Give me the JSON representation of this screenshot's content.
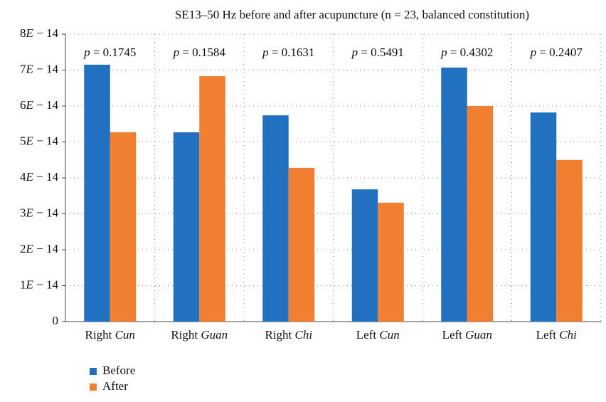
{
  "chart_data": {
    "type": "bar",
    "title": "SE13–50 Hz before and after acupuncture (n = 23, balanced constitution)",
    "categories": [
      "Right Cun",
      "Right Guan",
      "Right Chi",
      "Left Cun",
      "Left Guan",
      "Left Chi"
    ],
    "series": [
      {
        "name": "Before",
        "color": "#2271c0",
        "values": [
          7.15e-14,
          5.27e-14,
          5.74e-14,
          3.68e-14,
          7.07e-14,
          5.82e-14
        ]
      },
      {
        "name": "After",
        "color": "#f07f31",
        "values": [
          5.27e-14,
          6.83e-14,
          4.28e-14,
          3.31e-14,
          6e-14,
          4.5e-14
        ]
      }
    ],
    "annotations": [
      "p = 0.1745",
      "p = 0.1584",
      "p = 0.1631",
      "p = 0.5491",
      "p = 0.4302",
      "p = 0.2407"
    ],
    "ylim": [
      0,
      8e-14
    ],
    "yticks": [
      0,
      {
        "value": 1e-14,
        "label": "1E − 14"
      },
      {
        "value": 2e-14,
        "label": "2E − 14"
      },
      {
        "value": 3e-14,
        "label": "3E − 14"
      },
      {
        "value": 4e-14,
        "label": "4E − 14"
      },
      {
        "value": 5e-14,
        "label": "5E − 14"
      },
      {
        "value": 6e-14,
        "label": "6E − 14"
      },
      {
        "value": 7e-14,
        "label": "7E − 14"
      },
      {
        "value": 8e-14,
        "label": "8E − 14"
      }
    ],
    "grid": true,
    "legend": "bottom-left"
  }
}
